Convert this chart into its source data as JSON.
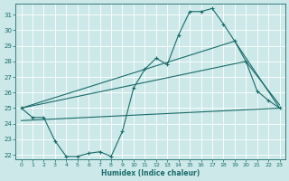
{
  "title": "",
  "xlabel": "Humidex (Indice chaleur)",
  "ylabel": "",
  "bg_color": "#cce8e8",
  "grid_color": "#b8d8d8",
  "line_color": "#1a6b6b",
  "xlim": [
    -0.5,
    23.5
  ],
  "ylim": [
    21.7,
    31.7
  ],
  "yticks": [
    22,
    23,
    24,
    25,
    26,
    27,
    28,
    29,
    30,
    31
  ],
  "xticks": [
    0,
    1,
    2,
    3,
    4,
    5,
    6,
    7,
    8,
    9,
    10,
    11,
    12,
    13,
    14,
    15,
    16,
    17,
    18,
    19,
    20,
    21,
    22,
    23
  ],
  "main_line": {
    "x": [
      0,
      1,
      2,
      3,
      4,
      5,
      6,
      7,
      8,
      9,
      10,
      11,
      12,
      13,
      14,
      15,
      16,
      17,
      18,
      19,
      20,
      21,
      22,
      23
    ],
    "y": [
      25.0,
      24.4,
      24.4,
      22.9,
      21.9,
      21.9,
      22.1,
      22.2,
      21.9,
      23.5,
      26.3,
      27.5,
      28.2,
      27.8,
      29.7,
      31.2,
      31.2,
      31.4,
      30.4,
      29.3,
      28.0,
      26.1,
      25.5,
      25.0
    ]
  },
  "upper_line1": {
    "x": [
      0,
      19,
      23
    ],
    "y": [
      25.0,
      29.3,
      25.0
    ]
  },
  "upper_line2": {
    "x": [
      0,
      20,
      23
    ],
    "y": [
      25.0,
      28.0,
      25.2
    ]
  },
  "lower_line": {
    "x": [
      0,
      23
    ],
    "y": [
      24.2,
      25.0
    ]
  },
  "bottom_line": {
    "x": [
      0,
      1,
      2,
      3,
      4,
      5,
      6,
      7,
      8,
      9,
      10,
      11,
      12,
      13,
      14,
      15,
      16,
      17,
      18,
      19,
      20,
      21,
      22,
      23
    ],
    "y": [
      25.0,
      24.4,
      24.4,
      22.9,
      21.9,
      21.9,
      22.1,
      22.2,
      21.9,
      23.5,
      26.3,
      27.5,
      28.2,
      27.8,
      29.7,
      31.2,
      31.2,
      31.4,
      30.4,
      29.3,
      28.0,
      26.1,
      25.5,
      25.0
    ]
  }
}
